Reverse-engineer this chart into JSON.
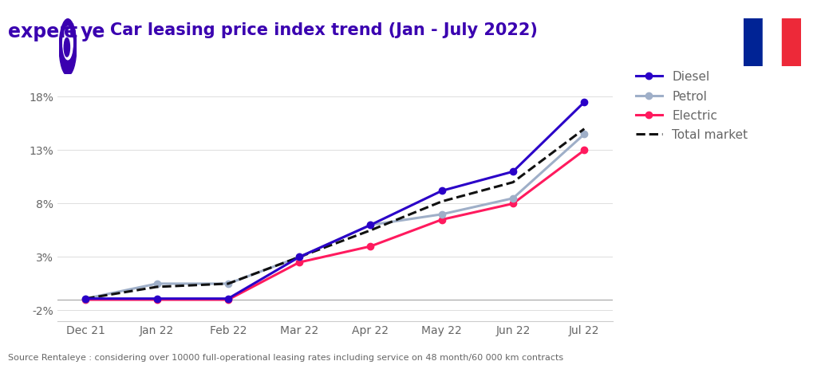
{
  "title": "Car leasing price index trend (Jan - July 2022)",
  "x_labels": [
    "Dec 21",
    "Jan 22",
    "Feb 22",
    "Mar 22",
    "Apr 22",
    "May 22",
    "Jun 22",
    "Jul 22"
  ],
  "diesel": [
    -0.9,
    -0.9,
    -0.9,
    3.0,
    6.0,
    9.2,
    11.0,
    17.5
  ],
  "petrol": [
    -0.9,
    0.5,
    0.5,
    3.0,
    6.0,
    7.0,
    8.5,
    14.5
  ],
  "electric": [
    -1.0,
    -1.0,
    -1.0,
    2.5,
    4.0,
    6.5,
    8.0,
    13.0
  ],
  "total_market": [
    -0.9,
    0.2,
    0.5,
    3.0,
    5.5,
    8.2,
    10.0,
    15.0
  ],
  "diesel_color": "#2a00c8",
  "petrol_color": "#9fafc8",
  "electric_color": "#ff1a5e",
  "total_color": "#111111",
  "y_ticks": [
    -2,
    3,
    8,
    13,
    18
  ],
  "y_tick_labels": [
    "-2%",
    "3%",
    "8%",
    "13%",
    "18%"
  ],
  "ylim": [
    -3.0,
    20.5
  ],
  "background_color": "#ffffff",
  "footer": "Source Rentaleye : considering over 10000 full-operational leasing rates including service on 48 month/60 000 km contracts",
  "logo_color": "#3a00b0",
  "france_flag_blue": "#002395",
  "france_flag_white": "#ffffff",
  "france_flag_red": "#ED2939",
  "hline_y": -1.0,
  "hline_color": "#aaaaaa"
}
